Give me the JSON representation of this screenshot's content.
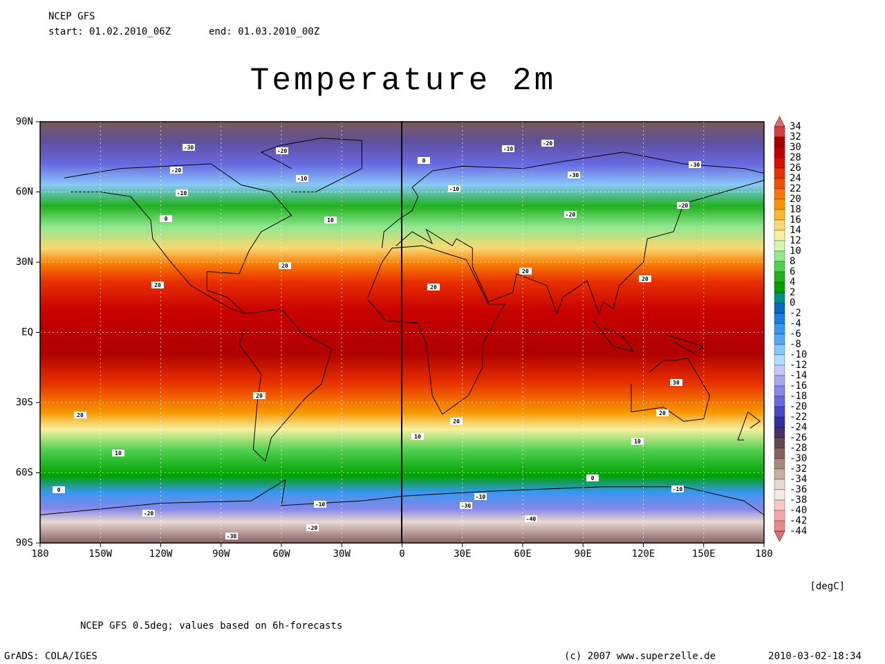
{
  "header": {
    "model": "NCEP GFS",
    "start": "start: 01.02.2010_06Z",
    "end": "end: 01.03.2010_00Z"
  },
  "title": "Temperature 2m",
  "lat_labels": [
    "90N",
    "60N",
    "30N",
    "EQ",
    "30S",
    "60S",
    "90S"
  ],
  "lon_labels": [
    "180",
    "150W",
    "120W",
    "90W",
    "60W",
    "30W",
    "0",
    "30E",
    "60E",
    "90E",
    "120E",
    "150E",
    "180"
  ],
  "colorbar": {
    "labels": [
      "34",
      "32",
      "30",
      "28",
      "26",
      "24",
      "22",
      "20",
      "18",
      "16",
      "14",
      "12",
      "10",
      "8",
      "6",
      "4",
      "2",
      "0",
      "-2",
      "-4",
      "-6",
      "-8",
      "-10",
      "-12",
      "-14",
      "-16",
      "-18",
      "-20",
      "-22",
      "-24",
      "-26",
      "-28",
      "-30",
      "-32",
      "-34",
      "-36",
      "-38",
      "-40",
      "-42",
      "-44"
    ],
    "colors": [
      "#e06868",
      "#d04040",
      "#a80000",
      "#c00000",
      "#d81000",
      "#e83000",
      "#f05000",
      "#f87800",
      "#f89800",
      "#f8b830",
      "#f8d870",
      "#f8f0a0",
      "#d0f8b0",
      "#90e890",
      "#50d050",
      "#20b020",
      "#00a000",
      "#009080",
      "#0868c0",
      "#1880e0",
      "#3898f0",
      "#58a8f8",
      "#88c8f8",
      "#b0e0f8",
      "#c8c8f8",
      "#a8a8f0",
      "#8888e8",
      "#6868e0",
      "#4848c8",
      "#3030a0",
      "#483068",
      "#684850",
      "#886060",
      "#a88878",
      "#c8b0a0",
      "#e8d8d0",
      "#f8e8e8",
      "#f8c8c8",
      "#f0a8a8",
      "#e88888",
      "#e07070"
    ],
    "unit": "[degC]"
  },
  "map_labels": [
    "-30",
    "-20",
    "-20",
    "-10",
    "-10",
    "0",
    "10",
    "20",
    "20",
    "0",
    "-10",
    "-20",
    "-30",
    "-30",
    "-10",
    "-20",
    "-20",
    "20",
    "20",
    "20",
    "30",
    "20",
    "20",
    "10",
    "10",
    "10",
    "20",
    "20",
    "0",
    "0",
    "-10",
    "-30",
    "-40",
    "-20",
    "-20",
    "-30",
    "-10",
    "-10"
  ],
  "footer": {
    "note": "NCEP GFS 0.5deg; values based on 6h-forecasts",
    "grads": "GrADS: COLA/IGES",
    "copyright": "(c) 2007 www.superzelle.de",
    "timestamp": "2010-03-02-18:34"
  }
}
